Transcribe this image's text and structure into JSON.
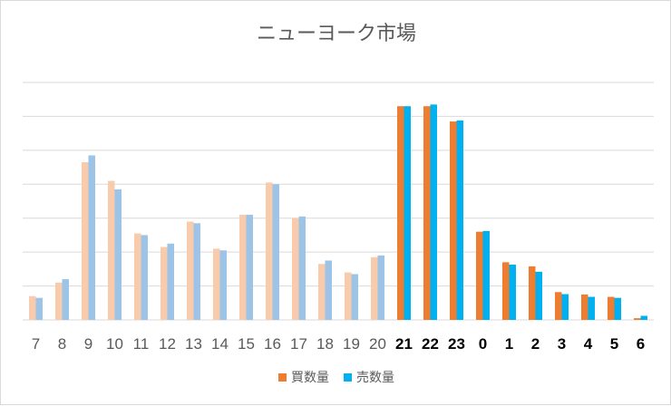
{
  "chart_data": {
    "type": "bar",
    "title": "ニューヨーク市場",
    "categories": [
      "7",
      "8",
      "9",
      "10",
      "11",
      "12",
      "13",
      "14",
      "15",
      "16",
      "17",
      "18",
      "19",
      "20",
      "21",
      "22",
      "23",
      "0",
      "1",
      "2",
      "3",
      "4",
      "5",
      "6"
    ],
    "bold_categories": [
      "21",
      "22",
      "23",
      "0",
      "1",
      "2",
      "3",
      "4",
      "5",
      "6"
    ],
    "series": [
      {
        "name": "買数量",
        "color": "#ED7D31",
        "faded_color": "#F8CBAD",
        "values": [
          0.7,
          1.1,
          4.65,
          4.1,
          2.55,
          2.15,
          2.9,
          2.1,
          3.1,
          4.05,
          3.0,
          1.65,
          1.4,
          1.85,
          6.3,
          6.3,
          5.85,
          2.6,
          1.7,
          1.58,
          0.82,
          0.75,
          0.68,
          0.05
        ]
      },
      {
        "name": "売数量",
        "color": "#00B0F0",
        "faded_color": "#9DC3E6",
        "values": [
          0.65,
          1.2,
          4.85,
          3.85,
          2.5,
          2.25,
          2.85,
          2.05,
          3.1,
          4.0,
          3.05,
          1.75,
          1.35,
          1.9,
          6.3,
          6.35,
          5.88,
          2.62,
          1.63,
          1.42,
          0.76,
          0.68,
          0.65,
          0.12
        ]
      }
    ],
    "faded_count": 14,
    "ylim": [
      0,
      7
    ],
    "grid": true,
    "legend_position": "bottom"
  }
}
